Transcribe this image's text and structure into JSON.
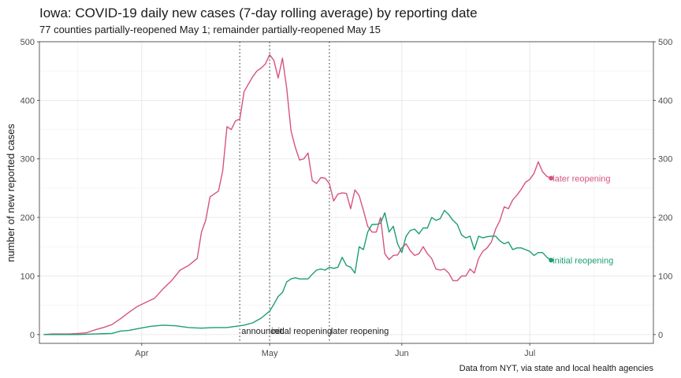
{
  "chart_data": {
    "type": "line",
    "title": "Iowa: COVID-19 daily new cases (7-day rolling average) by reporting date",
    "subtitle": "77 counties partially-reopened May 1; remainder partially-reopened May 15",
    "ylabel": "number of new reported cases",
    "caption": "Data from NYT, via state and local health agencies",
    "xlim": [
      "2020-03-08",
      "2020-07-30"
    ],
    "ylim": [
      -15,
      500
    ],
    "y_ticks": [
      0,
      100,
      200,
      300,
      400,
      500
    ],
    "x_ticks": [
      {
        "date": "2020-04-01",
        "label": "Apr"
      },
      {
        "date": "2020-05-01",
        "label": "May"
      },
      {
        "date": "2020-06-01",
        "label": "Jun"
      },
      {
        "date": "2020-07-01",
        "label": "Jul"
      }
    ],
    "grid": true,
    "secondary_y_axis": true,
    "colors": {
      "later": "#d6547e",
      "initial": "#1b9e77",
      "vline": "#666666"
    },
    "vlines": [
      {
        "date": "2020-04-24",
        "label": "announced"
      },
      {
        "date": "2020-05-01",
        "label": "initial reopening"
      },
      {
        "date": "2020-05-15",
        "label": "later reopening"
      }
    ],
    "series": [
      {
        "name": "later reopening",
        "color": "#d6547e",
        "points": [
          [
            "2020-03-09",
            0
          ],
          [
            "2020-03-11",
            1
          ],
          [
            "2020-03-13",
            1
          ],
          [
            "2020-03-15",
            1
          ],
          [
            "2020-03-17",
            2
          ],
          [
            "2020-03-19",
            3
          ],
          [
            "2020-03-21",
            8
          ],
          [
            "2020-03-23",
            12
          ],
          [
            "2020-03-25",
            17
          ],
          [
            "2020-03-27",
            27
          ],
          [
            "2020-03-29",
            38
          ],
          [
            "2020-03-31",
            48
          ],
          [
            "2020-04-02",
            55
          ],
          [
            "2020-04-04",
            62
          ],
          [
            "2020-04-06",
            78
          ],
          [
            "2020-04-08",
            92
          ],
          [
            "2020-04-10",
            110
          ],
          [
            "2020-04-12",
            118
          ],
          [
            "2020-04-14",
            130
          ],
          [
            "2020-04-15",
            175
          ],
          [
            "2020-04-16",
            195
          ],
          [
            "2020-04-17",
            235
          ],
          [
            "2020-04-19",
            245
          ],
          [
            "2020-04-20",
            280
          ],
          [
            "2020-04-21",
            355
          ],
          [
            "2020-04-22",
            350
          ],
          [
            "2020-04-23",
            365
          ],
          [
            "2020-04-24",
            368
          ],
          [
            "2020-04-25",
            415
          ],
          [
            "2020-04-27",
            440
          ],
          [
            "2020-04-28",
            450
          ],
          [
            "2020-04-29",
            455
          ],
          [
            "2020-04-30",
            462
          ],
          [
            "2020-05-01",
            478
          ],
          [
            "2020-05-02",
            468
          ],
          [
            "2020-05-03",
            438
          ],
          [
            "2020-05-04",
            472
          ],
          [
            "2020-05-05",
            420
          ],
          [
            "2020-05-06",
            348
          ],
          [
            "2020-05-07",
            320
          ],
          [
            "2020-05-08",
            298
          ],
          [
            "2020-05-09",
            300
          ],
          [
            "2020-05-10",
            310
          ],
          [
            "2020-05-11",
            263
          ],
          [
            "2020-05-12",
            258
          ],
          [
            "2020-05-13",
            268
          ],
          [
            "2020-05-14",
            267
          ],
          [
            "2020-05-15",
            258
          ],
          [
            "2020-05-16",
            228
          ],
          [
            "2020-05-17",
            240
          ],
          [
            "2020-05-18",
            242
          ],
          [
            "2020-05-19",
            241
          ],
          [
            "2020-05-20",
            215
          ],
          [
            "2020-05-21",
            247
          ],
          [
            "2020-05-22",
            237
          ],
          [
            "2020-05-23",
            212
          ],
          [
            "2020-05-24",
            185
          ],
          [
            "2020-05-25",
            175
          ],
          [
            "2020-05-26",
            175
          ],
          [
            "2020-05-27",
            200
          ],
          [
            "2020-05-28",
            138
          ],
          [
            "2020-05-29",
            128
          ],
          [
            "2020-05-30",
            135
          ],
          [
            "2020-05-31",
            136
          ],
          [
            "2020-06-01",
            148
          ],
          [
            "2020-06-02",
            155
          ],
          [
            "2020-06-03",
            143
          ],
          [
            "2020-06-04",
            135
          ],
          [
            "2020-06-05",
            138
          ],
          [
            "2020-06-06",
            150
          ],
          [
            "2020-06-07",
            138
          ],
          [
            "2020-06-08",
            130
          ],
          [
            "2020-06-09",
            112
          ],
          [
            "2020-06-10",
            110
          ],
          [
            "2020-06-11",
            112
          ],
          [
            "2020-06-12",
            105
          ],
          [
            "2020-06-13",
            92
          ],
          [
            "2020-06-14",
            92
          ],
          [
            "2020-06-15",
            100
          ],
          [
            "2020-06-16",
            100
          ],
          [
            "2020-06-17",
            112
          ],
          [
            "2020-06-18",
            105
          ],
          [
            "2020-06-19",
            130
          ],
          [
            "2020-06-20",
            142
          ],
          [
            "2020-06-21",
            148
          ],
          [
            "2020-06-22",
            158
          ],
          [
            "2020-06-23",
            180
          ],
          [
            "2020-06-24",
            195
          ],
          [
            "2020-06-25",
            218
          ],
          [
            "2020-06-26",
            215
          ],
          [
            "2020-06-27",
            230
          ],
          [
            "2020-06-28",
            238
          ],
          [
            "2020-06-29",
            248
          ],
          [
            "2020-06-30",
            260
          ],
          [
            "2020-07-01",
            265
          ],
          [
            "2020-07-02",
            275
          ],
          [
            "2020-07-03",
            295
          ],
          [
            "2020-07-04",
            278
          ],
          [
            "2020-07-05",
            270
          ],
          [
            "2020-07-06",
            267
          ]
        ]
      },
      {
        "name": "initial reopening",
        "color": "#1b9e77",
        "points": [
          [
            "2020-03-09",
            0
          ],
          [
            "2020-03-13",
            0
          ],
          [
            "2020-03-17",
            0
          ],
          [
            "2020-03-21",
            1
          ],
          [
            "2020-03-25",
            2
          ],
          [
            "2020-03-27",
            6
          ],
          [
            "2020-03-29",
            7
          ],
          [
            "2020-03-31",
            10
          ],
          [
            "2020-04-03",
            14
          ],
          [
            "2020-04-06",
            16
          ],
          [
            "2020-04-09",
            15
          ],
          [
            "2020-04-12",
            12
          ],
          [
            "2020-04-15",
            11
          ],
          [
            "2020-04-18",
            12
          ],
          [
            "2020-04-21",
            12
          ],
          [
            "2020-04-23",
            14
          ],
          [
            "2020-04-25",
            16
          ],
          [
            "2020-04-27",
            20
          ],
          [
            "2020-04-29",
            28
          ],
          [
            "2020-05-01",
            40
          ],
          [
            "2020-05-02",
            52
          ],
          [
            "2020-05-03",
            65
          ],
          [
            "2020-05-04",
            72
          ],
          [
            "2020-05-05",
            90
          ],
          [
            "2020-05-06",
            95
          ],
          [
            "2020-05-07",
            97
          ],
          [
            "2020-05-08",
            95
          ],
          [
            "2020-05-10",
            95
          ],
          [
            "2020-05-11",
            103
          ],
          [
            "2020-05-12",
            110
          ],
          [
            "2020-05-13",
            112
          ],
          [
            "2020-05-14",
            110
          ],
          [
            "2020-05-15",
            115
          ],
          [
            "2020-05-16",
            113
          ],
          [
            "2020-05-17",
            115
          ],
          [
            "2020-05-18",
            132
          ],
          [
            "2020-05-19",
            118
          ],
          [
            "2020-05-20",
            115
          ],
          [
            "2020-05-21",
            105
          ],
          [
            "2020-05-22",
            150
          ],
          [
            "2020-05-23",
            145
          ],
          [
            "2020-05-24",
            175
          ],
          [
            "2020-05-25",
            188
          ],
          [
            "2020-05-26",
            188
          ],
          [
            "2020-05-27",
            190
          ],
          [
            "2020-05-28",
            208
          ],
          [
            "2020-05-29",
            175
          ],
          [
            "2020-05-30",
            185
          ],
          [
            "2020-05-31",
            155
          ],
          [
            "2020-06-01",
            140
          ],
          [
            "2020-06-02",
            168
          ],
          [
            "2020-06-03",
            178
          ],
          [
            "2020-06-04",
            180
          ],
          [
            "2020-06-05",
            172
          ],
          [
            "2020-06-06",
            182
          ],
          [
            "2020-06-07",
            182
          ],
          [
            "2020-06-08",
            200
          ],
          [
            "2020-06-09",
            195
          ],
          [
            "2020-06-10",
            198
          ],
          [
            "2020-06-11",
            212
          ],
          [
            "2020-06-12",
            205
          ],
          [
            "2020-06-13",
            195
          ],
          [
            "2020-06-14",
            188
          ],
          [
            "2020-06-15",
            170
          ],
          [
            "2020-06-16",
            165
          ],
          [
            "2020-06-17",
            168
          ],
          [
            "2020-06-18",
            145
          ],
          [
            "2020-06-19",
            168
          ],
          [
            "2020-06-20",
            165
          ],
          [
            "2020-06-21",
            167
          ],
          [
            "2020-06-22",
            168
          ],
          [
            "2020-06-23",
            168
          ],
          [
            "2020-06-24",
            160
          ],
          [
            "2020-06-25",
            155
          ],
          [
            "2020-06-26",
            158
          ],
          [
            "2020-06-27",
            145
          ],
          [
            "2020-06-28",
            148
          ],
          [
            "2020-06-29",
            148
          ],
          [
            "2020-06-30",
            145
          ],
          [
            "2020-07-01",
            142
          ],
          [
            "2020-07-02",
            135
          ],
          [
            "2020-07-03",
            140
          ],
          [
            "2020-07-04",
            140
          ],
          [
            "2020-07-05",
            132
          ],
          [
            "2020-07-06",
            127
          ]
        ]
      }
    ]
  }
}
